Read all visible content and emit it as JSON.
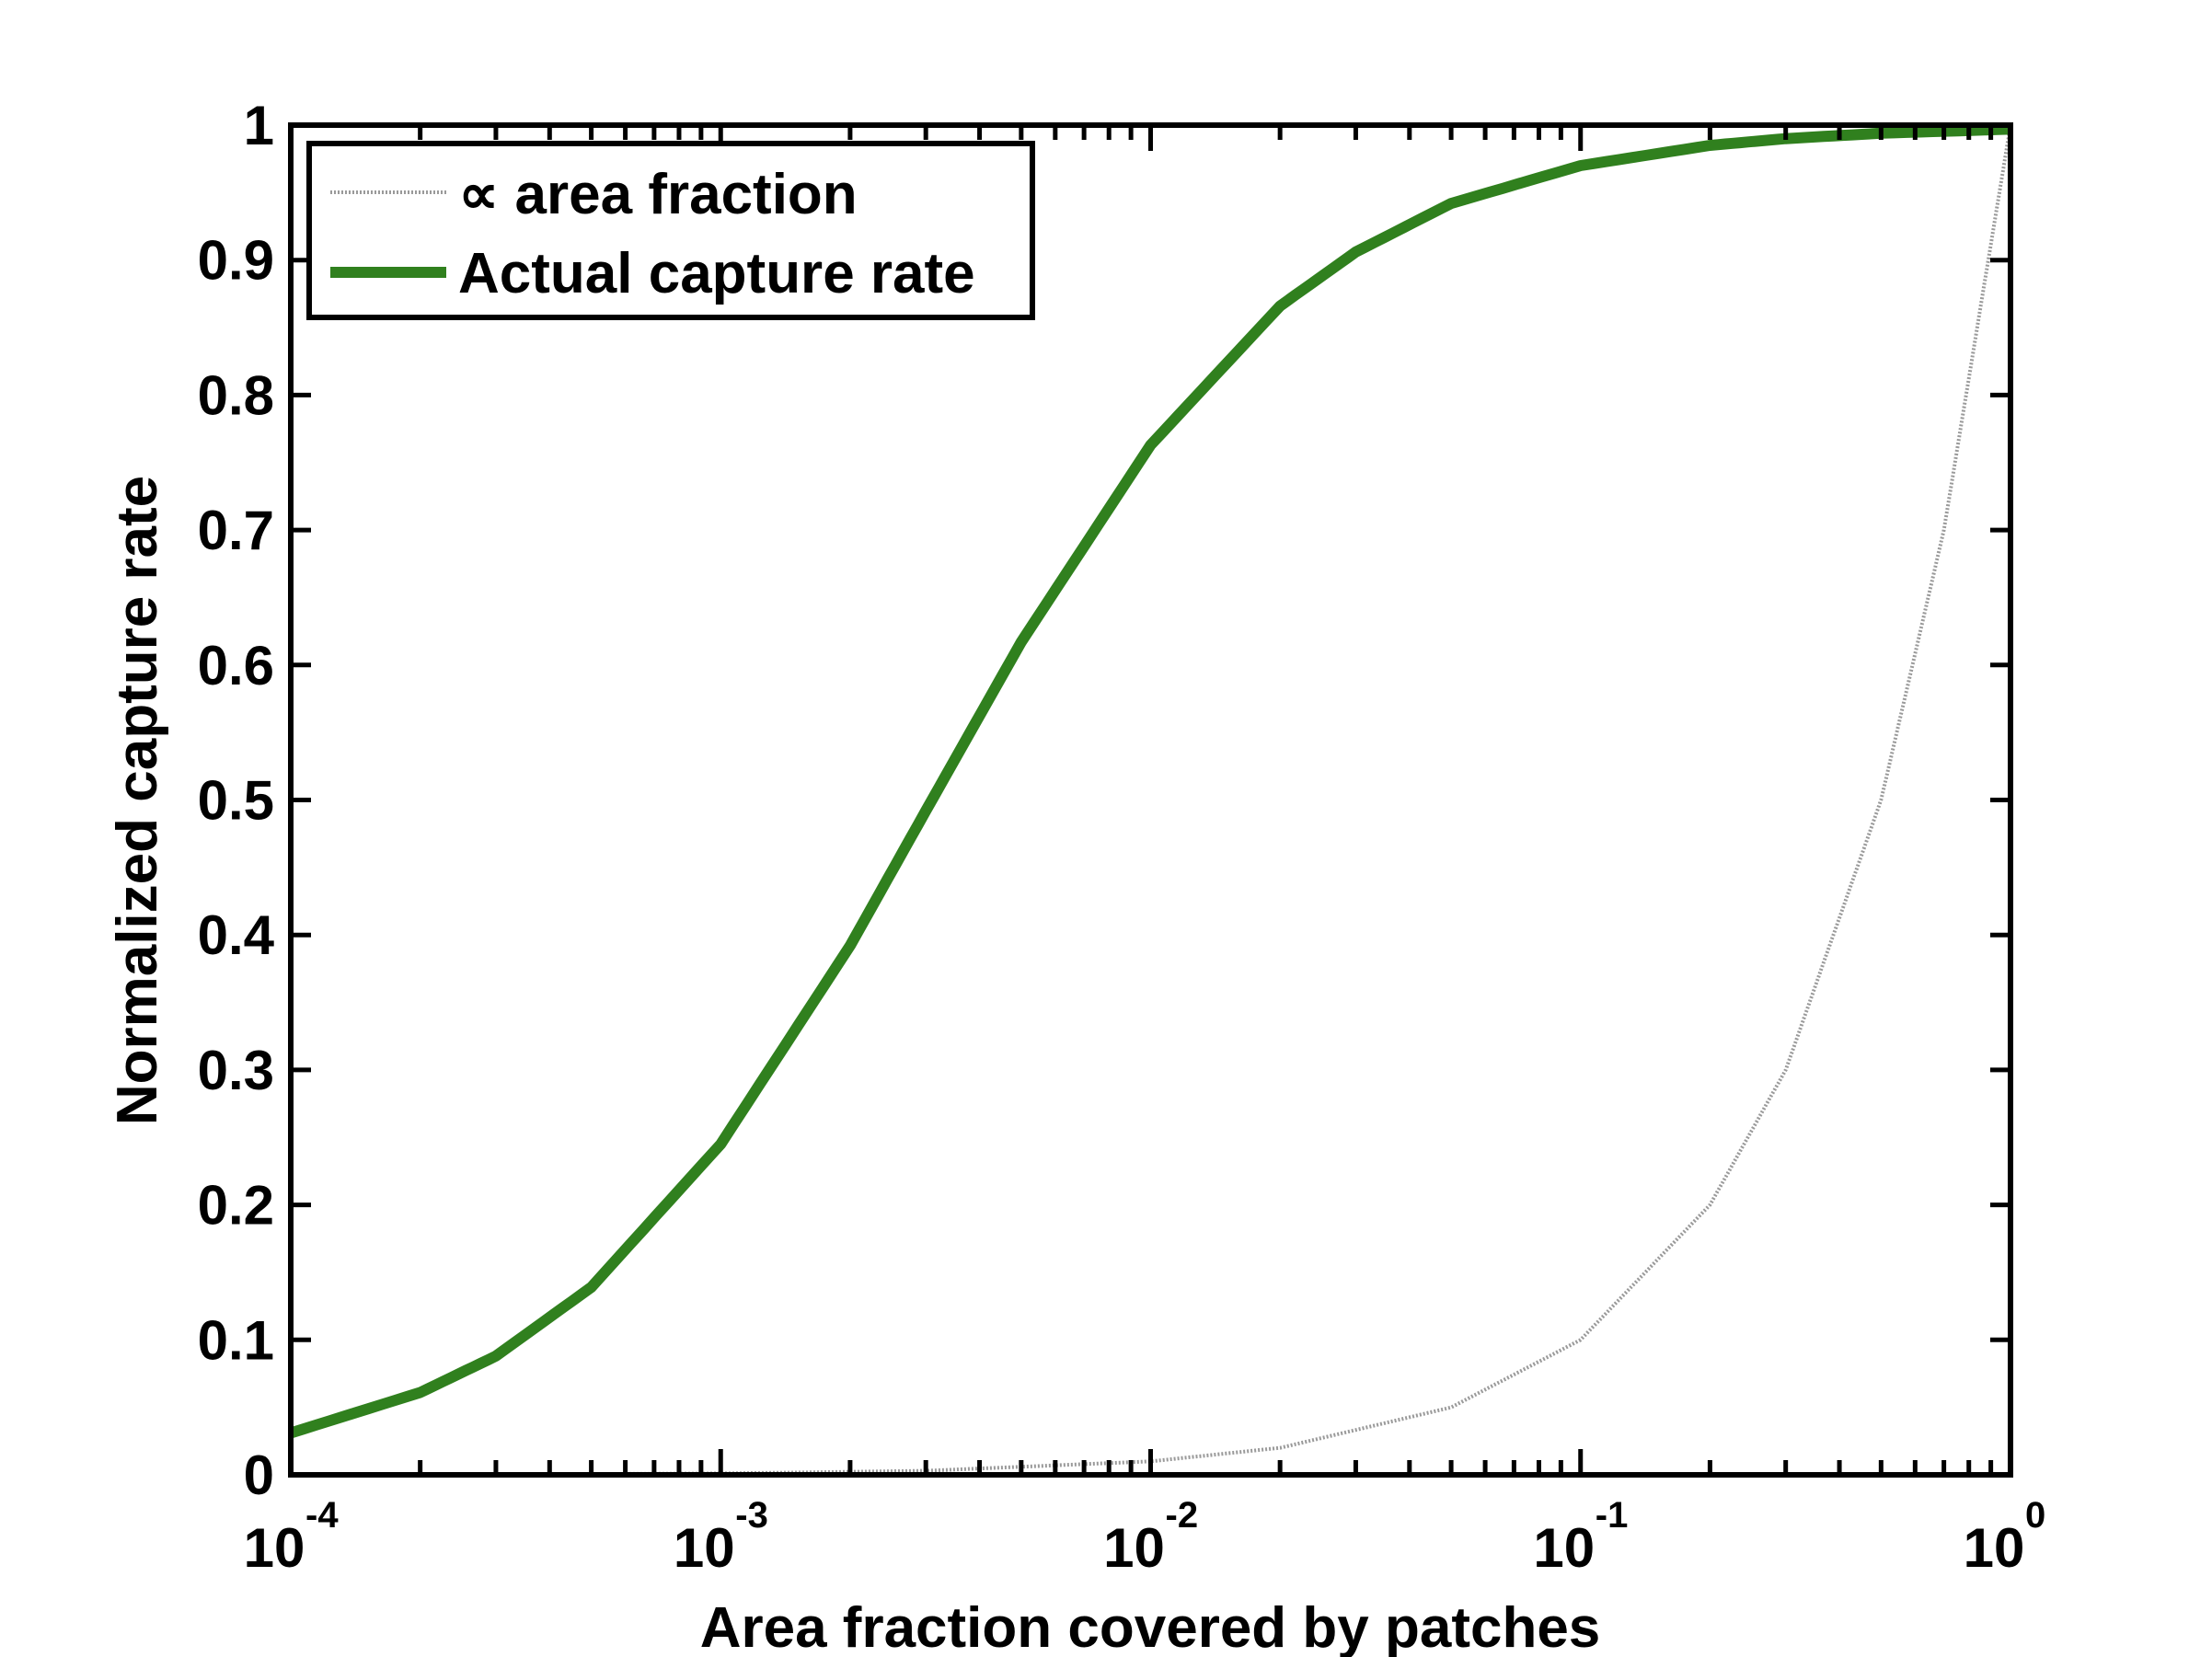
{
  "chart_data": {
    "type": "line",
    "title": "",
    "xlabel": "Area fraction covered by patches",
    "ylabel": "Normalized capture rate",
    "xscale": "log",
    "xlim": [
      0.0001,
      1
    ],
    "ylim": [
      0,
      1
    ],
    "xticks": [
      {
        "base": "10",
        "exp": "-4",
        "value": 0.0001
      },
      {
        "base": "10",
        "exp": "-3",
        "value": 0.001
      },
      {
        "base": "10",
        "exp": "-2",
        "value": 0.01
      },
      {
        "base": "10",
        "exp": "-1",
        "value": 0.1
      },
      {
        "base": "10",
        "exp": "0",
        "value": 1
      }
    ],
    "yticks": [
      "0",
      "0.1",
      "0.2",
      "0.3",
      "0.4",
      "0.5",
      "0.6",
      "0.7",
      "0.8",
      "0.9",
      "1"
    ],
    "grid": false,
    "legend_position": "top-left",
    "series": [
      {
        "name": "∝ area fraction",
        "color": "#9a9a9a",
        "style": "dotted",
        "x": [
          0.0001,
          0.0003,
          0.001,
          0.003,
          0.01,
          0.02,
          0.05,
          0.1,
          0.2,
          0.3,
          0.5,
          0.7,
          1
        ],
        "y": [
          0.0001,
          0.0003,
          0.001,
          0.003,
          0.01,
          0.02,
          0.05,
          0.1,
          0.2,
          0.3,
          0.5,
          0.7,
          1
        ]
      },
      {
        "name": "Actual capture rate",
        "color": "#30801e",
        "style": "solid",
        "x": [
          0.0001,
          0.0002,
          0.0003,
          0.0005,
          0.001,
          0.002,
          0.003,
          0.005,
          0.01,
          0.02,
          0.03,
          0.05,
          0.1,
          0.2,
          0.3,
          0.5,
          1
        ],
        "y": [
          0.031,
          0.061,
          0.088,
          0.139,
          0.245,
          0.392,
          0.492,
          0.617,
          0.763,
          0.866,
          0.906,
          0.942,
          0.97,
          0.985,
          0.99,
          0.994,
          0.997
        ]
      }
    ]
  }
}
